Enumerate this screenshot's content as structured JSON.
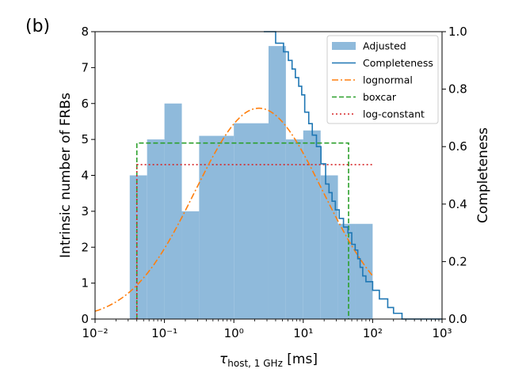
{
  "chart_data": {
    "type": "bar",
    "panel_label": "(b)",
    "xscale": "log",
    "xlim": [
      0.01,
      1000
    ],
    "x_ticks": [
      0.01,
      0.1,
      1,
      10,
      100,
      1000
    ],
    "x_tick_labels": [
      "10⁻²",
      "10⁻¹",
      "10⁰",
      "10¹",
      "10²",
      "10³"
    ],
    "xlabel": "τ_host, 1 GHz [ms]",
    "xlabel_parts": {
      "symbol": "τ",
      "subscript": "host, 1 GHz",
      "unit": " [ms]"
    },
    "ylim_left": [
      0,
      8
    ],
    "y_ticks_left": [
      "0",
      "1",
      "2",
      "3",
      "4",
      "5",
      "6",
      "7",
      "8"
    ],
    "ylabel_left": "Intrinsic number of FRBs",
    "ylim_right": [
      0,
      1.0
    ],
    "y_ticks_right": [
      "0.0",
      "0.2",
      "0.4",
      "0.6",
      "0.8",
      "1.0"
    ],
    "ylabel_right": "Completeness",
    "legend_position": "top-right",
    "series": [
      {
        "name": "Adjusted",
        "kind": "histogram",
        "color": "#8fbadb",
        "bin_edges": [
          0.0316,
          0.0562,
          0.1,
          0.178,
          0.316,
          1.0,
          3.16,
          5.62,
          10.0,
          17.8,
          31.6,
          56.2,
          100.0
        ],
        "values": [
          4.0,
          5.0,
          6.0,
          3.0,
          5.1,
          5.45,
          7.6,
          5.0,
          5.25,
          4.0,
          2.65,
          2.65
        ]
      },
      {
        "name": "Completeness",
        "kind": "step",
        "axis": "right",
        "color": "#1f77b4",
        "x": [
          2.7,
          4.0,
          5.2,
          6.1,
          6.9,
          7.7,
          8.6,
          9.5,
          10.5,
          12.0,
          13.5,
          15.5,
          18.0,
          21.0,
          23.5,
          26.0,
          29.0,
          33.0,
          38.0,
          44.0,
          50.0,
          56.0,
          61.0,
          66.0,
          72.0,
          80.0,
          100.0,
          125.0,
          165.0,
          200.0,
          265.0,
          1000.0
        ],
        "y": [
          1.0,
          0.96,
          0.93,
          0.9,
          0.87,
          0.84,
          0.81,
          0.78,
          0.72,
          0.68,
          0.64,
          0.6,
          0.54,
          0.47,
          0.44,
          0.41,
          0.38,
          0.35,
          0.32,
          0.3,
          0.26,
          0.24,
          0.21,
          0.18,
          0.15,
          0.13,
          0.1,
          0.07,
          0.04,
          0.02,
          0.0,
          0.0
        ]
      },
      {
        "name": "lognormal",
        "kind": "curve",
        "color": "#ff7f0e",
        "style": "dashdot",
        "x_range": [
          0.01,
          100
        ],
        "peak_x": 2.3,
        "peak_y": 5.87,
        "sigma_dex": 0.92
      },
      {
        "name": "boxcar",
        "kind": "box",
        "color": "#2ca02c",
        "style": "dashed",
        "x_min": 0.04,
        "x_max": 45,
        "height": 4.9
      },
      {
        "name": "log-constant",
        "kind": "box",
        "color": "#d62728",
        "style": "dotted",
        "x_min": 0.04,
        "x_max": 100,
        "height": 4.3
      }
    ]
  }
}
